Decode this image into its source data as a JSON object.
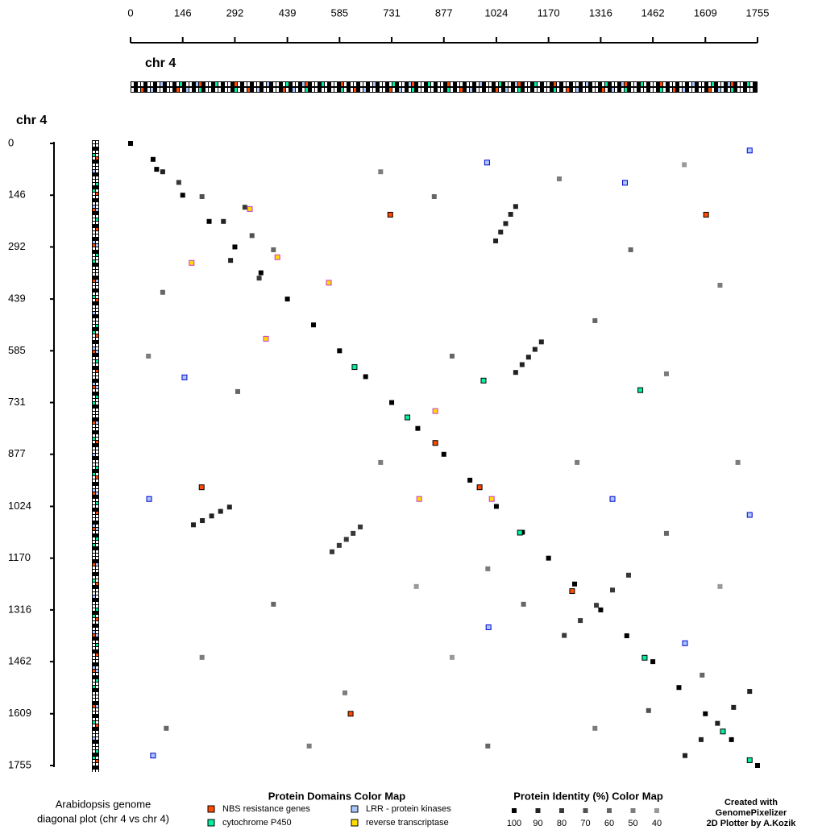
{
  "chart_data": {
    "type": "dotplot",
    "x_title": "chr 4",
    "y_title": "chr 4",
    "xlim": [
      0,
      1755
    ],
    "ylim": [
      0,
      1755
    ],
    "xticks": [
      0,
      146,
      292,
      439,
      585,
      731,
      877,
      1024,
      1170,
      1316,
      1462,
      1609,
      1755
    ],
    "yticks": [
      0,
      146,
      292,
      439,
      585,
      731,
      877,
      1024,
      1170,
      1316,
      1462,
      1609,
      1755
    ],
    "points": {
      "x": [
        0,
        73,
        146,
        220,
        292,
        365,
        439,
        512,
        585,
        658,
        731,
        804,
        877,
        950,
        1024,
        1097,
        1170,
        1243,
        1316,
        1389,
        1462,
        1535,
        1609,
        1682,
        1755,
        1022,
        1036,
        1050,
        1064,
        1078,
        1078,
        1096,
        1114,
        1132,
        1150,
        176,
        201,
        227,
        252,
        277,
        564,
        584,
        604,
        623,
        643,
        1552,
        1597,
        1643,
        1688,
        1733,
        1214,
        1259,
        1304,
        1349,
        1394,
        63,
        90,
        135,
        200,
        260,
        320,
        340,
        400,
        280,
        360,
        90,
        50,
        300,
        700,
        850,
        1200,
        1400,
        1550,
        1650,
        1300,
        1500,
        900,
        700,
        400,
        200,
        100,
        600,
        900,
        1100,
        1250,
        1500,
        1700,
        1650,
        500,
        1000,
        1300,
        800,
        1600,
        1450,
        1000
      ],
      "y": [
        0,
        73,
        146,
        220,
        292,
        365,
        439,
        512,
        585,
        658,
        731,
        804,
        877,
        950,
        1024,
        1097,
        1170,
        1243,
        1316,
        1389,
        1462,
        1535,
        1609,
        1682,
        1755,
        275,
        250,
        226,
        200,
        178,
        646,
        624,
        603,
        581,
        560,
        1076,
        1064,
        1051,
        1038,
        1026,
        1152,
        1134,
        1117,
        1100,
        1082,
        1727,
        1682,
        1636,
        1591,
        1546,
        1388,
        1346,
        1303,
        1260,
        1218,
        45,
        80,
        110,
        150,
        220,
        180,
        260,
        300,
        330,
        380,
        420,
        600,
        700,
        80,
        150,
        100,
        300,
        60,
        400,
        500,
        650,
        600,
        900,
        1300,
        1450,
        1650,
        1550,
        1450,
        1300,
        900,
        1100,
        900,
        1250,
        1700,
        1700,
        1650,
        1250,
        1500,
        1600,
        1200
      ],
      "identity": [
        100,
        100,
        100,
        100,
        100,
        100,
        100,
        100,
        100,
        100,
        100,
        100,
        100,
        100,
        100,
        100,
        100,
        100,
        100,
        100,
        100,
        100,
        100,
        100,
        100,
        90,
        90,
        90,
        90,
        90,
        90,
        90,
        90,
        90,
        90,
        90,
        90,
        90,
        90,
        90,
        80,
        80,
        80,
        80,
        80,
        90,
        90,
        90,
        90,
        90,
        80,
        80,
        80,
        80,
        80,
        100,
        90,
        80,
        70,
        90,
        80,
        70,
        60,
        90,
        80,
        60,
        50,
        60,
        50,
        60,
        50,
        60,
        40,
        50,
        60,
        50,
        60,
        50,
        60,
        50,
        60,
        50,
        40,
        60,
        50,
        60,
        50,
        40,
        50,
        60,
        50,
        40,
        60,
        70,
        50
      ]
    },
    "domain_legend_title": "Protein Domains Color Map",
    "series": [
      {
        "name": "NBS resistance genes",
        "color": "#ff4a00",
        "edge": "#000000",
        "x": [
          853,
          977,
          1236,
          616,
          199,
          727,
          1611
        ],
        "y": [
          845,
          970,
          1263,
          1609,
          970,
          201,
          201
        ]
      },
      {
        "name": "cytochrome P450",
        "color": "#00f0a0",
        "edge": "#000000",
        "x": [
          627,
          775,
          1090,
          1439,
          1658,
          1733,
          988,
          1427
        ],
        "y": [
          631,
          773,
          1098,
          1451,
          1659,
          1740,
          669,
          696
        ]
      },
      {
        "name": "LRR - protein kinases",
        "color": "#a8c8ff",
        "edge": "#0000cc",
        "x": [
          151,
          998,
          1733,
          1384,
          52,
          1349,
          1733,
          1002,
          1552,
          63
        ],
        "y": [
          660,
          54,
          20,
          111,
          1003,
          1003,
          1048,
          1365,
          1410,
          1727
        ]
      },
      {
        "name": "reverse transcriptase",
        "color": "#ffdd00",
        "edge": "#cc33cc",
        "x": [
          171,
          334,
          411,
          555,
          379,
          853,
          1011,
          808
        ],
        "y": [
          337,
          185,
          321,
          393,
          551,
          755,
          1003,
          1003
        ]
      }
    ],
    "identity_legend_title": "Protein Identity (%) Color Map",
    "identity_levels": [
      100,
      90,
      80,
      70,
      60,
      50,
      40
    ],
    "identity_colors": [
      "#000000",
      "#222222",
      "#383838",
      "#505050",
      "#666666",
      "#7c7c7c",
      "#999999"
    ],
    "caption": [
      "Arabidopsis genome",
      "diagonal plot (chr 4 vs chr 4)"
    ],
    "credit": [
      "Created with",
      "GenomePixelizer",
      "2D Plotter by A.Kozik"
    ]
  }
}
